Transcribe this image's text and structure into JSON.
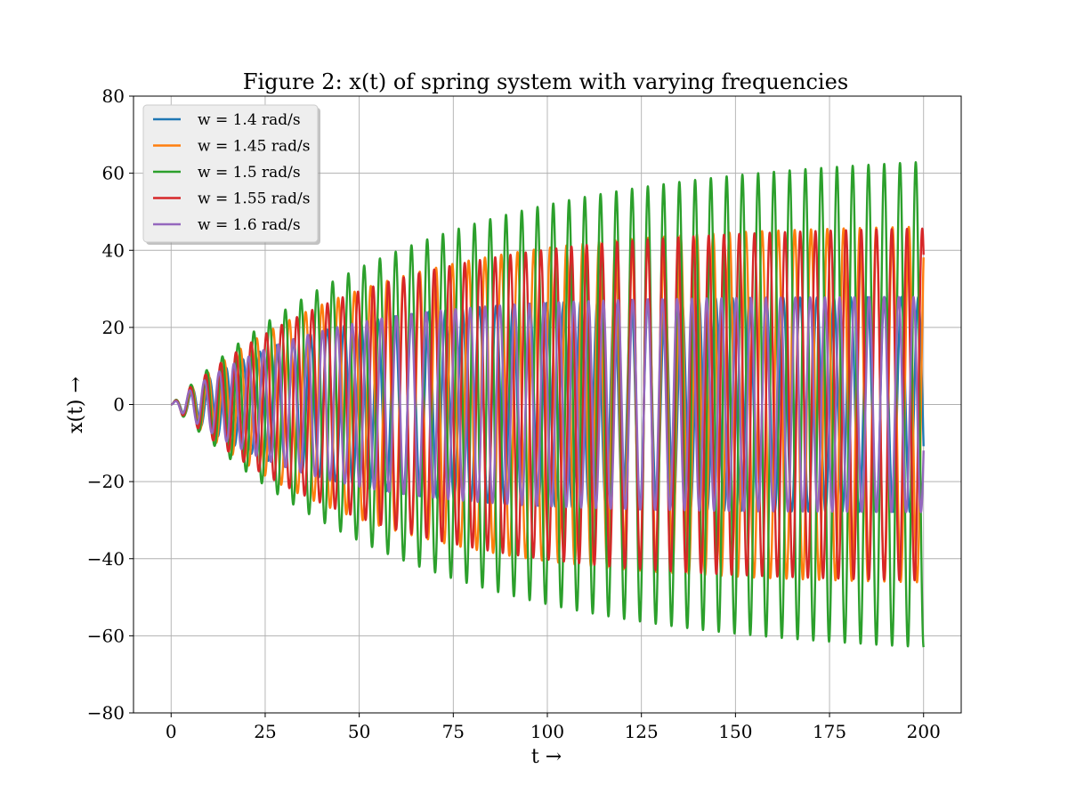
{
  "chart_data": {
    "type": "line",
    "title": "Figure 2: x(t) of spring system with varying frequencies",
    "xlabel": "t →",
    "ylabel": "x(t) →",
    "xlim": [
      -10,
      210
    ],
    "ylim": [
      -80,
      80
    ],
    "xticks": [
      0,
      25,
      50,
      75,
      100,
      125,
      150,
      175,
      200
    ],
    "yticks": [
      -80,
      -60,
      -40,
      -20,
      0,
      20,
      40,
      60,
      80
    ],
    "xtick_labels": [
      "0",
      "25",
      "50",
      "75",
      "100",
      "125",
      "150",
      "175",
      "200"
    ],
    "ytick_labels": [
      "−80",
      "−60",
      "−40",
      "−20",
      "0",
      "20",
      "40",
      "60",
      "80"
    ],
    "grid": true,
    "legend_position": "upper-left",
    "series": [
      {
        "name": "w = 1.4 rad/s",
        "color": "#1f77b4",
        "frequency": 1.4,
        "steady_amplitude": 28
      },
      {
        "name": "w = 1.45 rad/s",
        "color": "#ff7f0e",
        "frequency": 1.45,
        "steady_amplitude": 47
      },
      {
        "name": "w = 1.5 rad/s",
        "color": "#2ca02c",
        "frequency": 1.5,
        "steady_amplitude": 66
      },
      {
        "name": "w = 1.55 rad/s",
        "color": "#d62728",
        "frequency": 1.55,
        "steady_amplitude": 46.5
      },
      {
        "name": "w = 1.6 rad/s",
        "color": "#9467bd",
        "frequency": 1.6,
        "steady_amplitude": 28
      }
    ]
  }
}
